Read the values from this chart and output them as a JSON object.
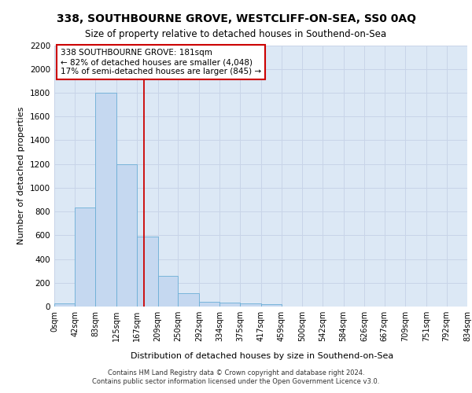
{
  "title_line1": "338, SOUTHBOURNE GROVE, WESTCLIFF-ON-SEA, SS0 0AQ",
  "title_line2": "Size of property relative to detached houses in Southend-on-Sea",
  "xlabel": "Distribution of detached houses by size in Southend-on-Sea",
  "ylabel": "Number of detached properties",
  "footer_line1": "Contains HM Land Registry data © Crown copyright and database right 2024.",
  "footer_line2": "Contains public sector information licensed under the Open Government Licence v3.0.",
  "annotation_line1": "338 SOUTHBOURNE GROVE: 181sqm",
  "annotation_line2": "← 82% of detached houses are smaller (4,048)",
  "annotation_line3": "17% of semi-detached houses are larger (845) →",
  "bar_edges": [
    0,
    42,
    83,
    125,
    167,
    209,
    250,
    292,
    334,
    375,
    417,
    459,
    500,
    542,
    584,
    626,
    667,
    709,
    751,
    792,
    834
  ],
  "bar_labels": [
    "0sqm",
    "42sqm",
    "83sqm",
    "125sqm",
    "167sqm",
    "209sqm",
    "250sqm",
    "292sqm",
    "334sqm",
    "375sqm",
    "417sqm",
    "459sqm",
    "500sqm",
    "542sqm",
    "584sqm",
    "626sqm",
    "667sqm",
    "709sqm",
    "751sqm",
    "792sqm",
    "834sqm"
  ],
  "bar_heights": [
    25,
    835,
    1800,
    1200,
    590,
    255,
    115,
    40,
    35,
    25,
    20,
    0,
    0,
    0,
    0,
    0,
    0,
    0,
    0,
    0
  ],
  "bar_color": "#c5d8f0",
  "bar_edge_color": "#6baed6",
  "grid_color": "#c8d4e8",
  "background_color": "#dce8f5",
  "vline_x": 181,
  "vline_color": "#cc0000",
  "annotation_box_color": "#ffffff",
  "annotation_box_edge_color": "#cc0000",
  "ylim": [
    0,
    2200
  ],
  "yticks": [
    0,
    200,
    400,
    600,
    800,
    1000,
    1200,
    1400,
    1600,
    1800,
    2000,
    2200
  ]
}
